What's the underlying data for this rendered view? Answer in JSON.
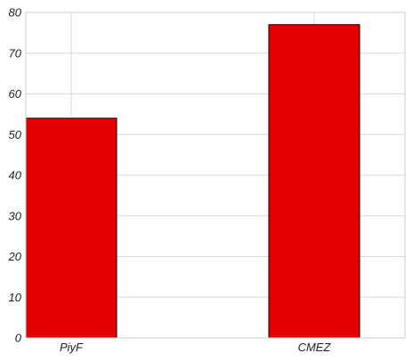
{
  "chart_data": {
    "type": "bar",
    "categories": [
      "PiyF",
      "CMEZ"
    ],
    "values": [
      54,
      77
    ],
    "title": "",
    "xlabel": "",
    "ylabel": "",
    "ylim": [
      0,
      80
    ],
    "yticks": [
      0,
      10,
      20,
      30,
      40,
      50,
      60,
      70,
      80
    ],
    "grid": true,
    "legend": "none",
    "colors": {
      "bar": "#e50000",
      "bar_edge": "#000000",
      "grid": "#d9d9d9",
      "frame": "#cccccc"
    }
  }
}
